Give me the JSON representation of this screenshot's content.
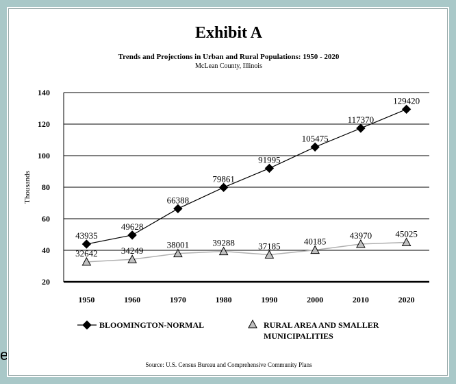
{
  "title": "Exhibit A",
  "subtitle": "Trends and Projections in Urban and Rural Populations: 1950 - 2020",
  "subtitle2": "McLean County, Illinois",
  "source": "Source: U.S. Census Bureau and Comprehensive Community Plans",
  "stray_text": "e",
  "colors": {
    "border": "#a9c8c8",
    "bloomington": "#000000",
    "rural_line": "#b0b0b0",
    "rural_marker": "#c0c0c0"
  },
  "chart_data": {
    "type": "line",
    "title": "Exhibit A",
    "ylabel": "Thousands",
    "xlabel": "",
    "categories": [
      "1950",
      "1960",
      "1970",
      "1980",
      "1990",
      "2000",
      "2010",
      "2020"
    ],
    "ylim": [
      20,
      140
    ],
    "yticks": [
      "20",
      "40",
      "60",
      "80",
      "100",
      "120",
      "140"
    ],
    "grid": true,
    "legend_position": "bottom",
    "series": [
      {
        "name": "BLOOMINGTON-NORMAL",
        "marker": "diamond",
        "values": [
          43935,
          49628,
          66388,
          79861,
          91995,
          105475,
          117370,
          129420
        ],
        "labels": [
          "43935",
          "49628",
          "66388",
          "79861",
          "91995",
          "105475",
          "117370",
          "129420"
        ]
      },
      {
        "name": "RURAL AREA AND SMALLER MUNICIPALITIES",
        "name_lines": [
          "RURAL AREA AND SMALLER",
          "MUNICIPALITIES"
        ],
        "marker": "triangle",
        "values": [
          32642,
          34249,
          38001,
          39288,
          37185,
          40185,
          43970,
          45025
        ],
        "labels": [
          "32642",
          "34249",
          "38001",
          "39288",
          "37185",
          "40185",
          "43970",
          "45025"
        ]
      }
    ]
  }
}
